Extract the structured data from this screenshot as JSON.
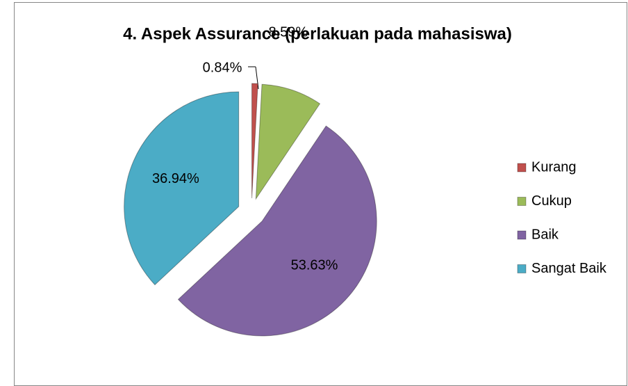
{
  "chart_data": {
    "type": "pie",
    "title": "4. Aspek Assurance (perlakuan pada mahasiswa)",
    "categories": [
      "Kurang",
      "Cukup",
      "Baik",
      "Sangat Baik"
    ],
    "values": [
      0.84,
      8.59,
      53.63,
      36.94
    ],
    "value_labels": [
      "0.84%",
      "8.59%",
      "53.63%",
      "36.94%"
    ],
    "colors": [
      "#c0504d",
      "#9bbb59",
      "#8064a2",
      "#4bacc6"
    ],
    "legend": "right"
  }
}
